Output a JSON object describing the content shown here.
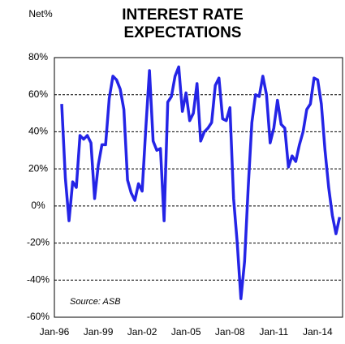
{
  "chart_data": {
    "type": "line",
    "title": "INTEREST RATE EXPECTATIONS",
    "y_label": "Net%",
    "annotation": "Source: ASB",
    "x": [
      1996.5,
      1996.75,
      1997,
      1997.25,
      1997.5,
      1997.75,
      1998,
      1998.25,
      1998.5,
      1998.75,
      1999,
      1999.25,
      1999.5,
      1999.75,
      2000,
      2000.25,
      2000.5,
      2000.75,
      2001,
      2001.25,
      2001.5,
      2001.75,
      2002,
      2002.25,
      2002.5,
      2002.75,
      2003,
      2003.25,
      2003.5,
      2003.75,
      2004,
      2004.25,
      2004.5,
      2004.75,
      2005,
      2005.25,
      2005.5,
      2005.75,
      2006,
      2006.25,
      2006.5,
      2006.75,
      2007,
      2007.25,
      2007.5,
      2007.75,
      2008,
      2008.25,
      2008.5,
      2008.75,
      2009,
      2009.25,
      2009.5,
      2009.75,
      2010,
      2010.25,
      2010.5,
      2010.75,
      2011,
      2011.25,
      2011.5,
      2011.75,
      2012,
      2012.25,
      2012.5,
      2012.75,
      2013,
      2013.25,
      2013.5,
      2013.75,
      2014,
      2014.25,
      2014.5,
      2014.75,
      2015,
      2015.25,
      2015.5
    ],
    "series": [
      {
        "name": "Net%",
        "color": "#2424e6",
        "values": [
          55,
          15,
          -8,
          13,
          10,
          38,
          36,
          38,
          34,
          4,
          22,
          33,
          33,
          58,
          70,
          68,
          63,
          52,
          14,
          7,
          3,
          12,
          8,
          42,
          73,
          35,
          30,
          31,
          -8,
          56,
          59,
          70,
          75,
          51,
          61,
          46,
          50,
          66,
          35,
          40,
          42,
          45,
          65,
          69,
          47,
          46,
          53,
          4,
          -20,
          -50,
          -30,
          10,
          45,
          60,
          59,
          70,
          60,
          34,
          42,
          57,
          44,
          42,
          21,
          27,
          24,
          33,
          40,
          52,
          55,
          69,
          68,
          55,
          30,
          10,
          -5,
          -15,
          -6
        ]
      }
    ],
    "xlim": [
      1996,
      2015.7
    ],
    "xticks": [
      {
        "value": 1996,
        "label": "Jan-96"
      },
      {
        "value": 1999,
        "label": "Jan-99"
      },
      {
        "value": 2002,
        "label": "Jan-02"
      },
      {
        "value": 2005,
        "label": "Jan-05"
      },
      {
        "value": 2008,
        "label": "Jan-08"
      },
      {
        "value": 2011,
        "label": "Jan-11"
      },
      {
        "value": 2014,
        "label": "Jan-14"
      }
    ],
    "ylim": [
      -60,
      80
    ],
    "yticks": [
      {
        "value": -60,
        "label": "-60%"
      },
      {
        "value": -40,
        "label": "-40%"
      },
      {
        "value": -20,
        "label": "-20%"
      },
      {
        "value": 0,
        "label": "0%"
      },
      {
        "value": 20,
        "label": "20%"
      },
      {
        "value": 40,
        "label": "40%"
      },
      {
        "value": 60,
        "label": "60%"
      },
      {
        "value": 80,
        "label": "80%"
      }
    ],
    "grid": true
  }
}
